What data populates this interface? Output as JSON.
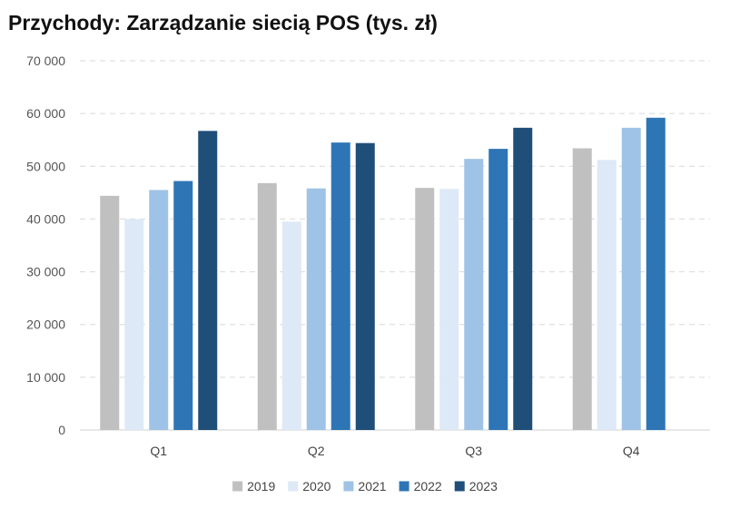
{
  "chart_data": {
    "type": "bar",
    "title": "Przychody: Zarządzanie siecią POS (tys. zł)",
    "xlabel": "",
    "ylabel": "",
    "categories": [
      "Q1",
      "Q2",
      "Q3",
      "Q4"
    ],
    "series": [
      {
        "name": "2019",
        "color": "#c0c0c0",
        "values": [
          44400,
          46800,
          45900,
          53400
        ]
      },
      {
        "name": "2020",
        "color": "#dde9f6",
        "values": [
          40000,
          39500,
          45700,
          51200
        ]
      },
      {
        "name": "2021",
        "color": "#9fc3e6",
        "values": [
          45500,
          45800,
          51400,
          57300
        ]
      },
      {
        "name": "2022",
        "color": "#2e75b6",
        "values": [
          47200,
          54500,
          53300,
          59200
        ]
      },
      {
        "name": "2023",
        "color": "#1f4e79",
        "values": [
          56700,
          54400,
          57300,
          null
        ]
      }
    ],
    "ylim": [
      0,
      70000
    ],
    "yticks": [
      0,
      10000,
      20000,
      30000,
      40000,
      50000,
      60000,
      70000
    ],
    "ytick_labels": [
      "0",
      "10 000",
      "20 000",
      "30 000",
      "40 000",
      "50 000",
      "60 000",
      "70 000"
    ],
    "grid": true,
    "legend_position": "bottom-center"
  }
}
